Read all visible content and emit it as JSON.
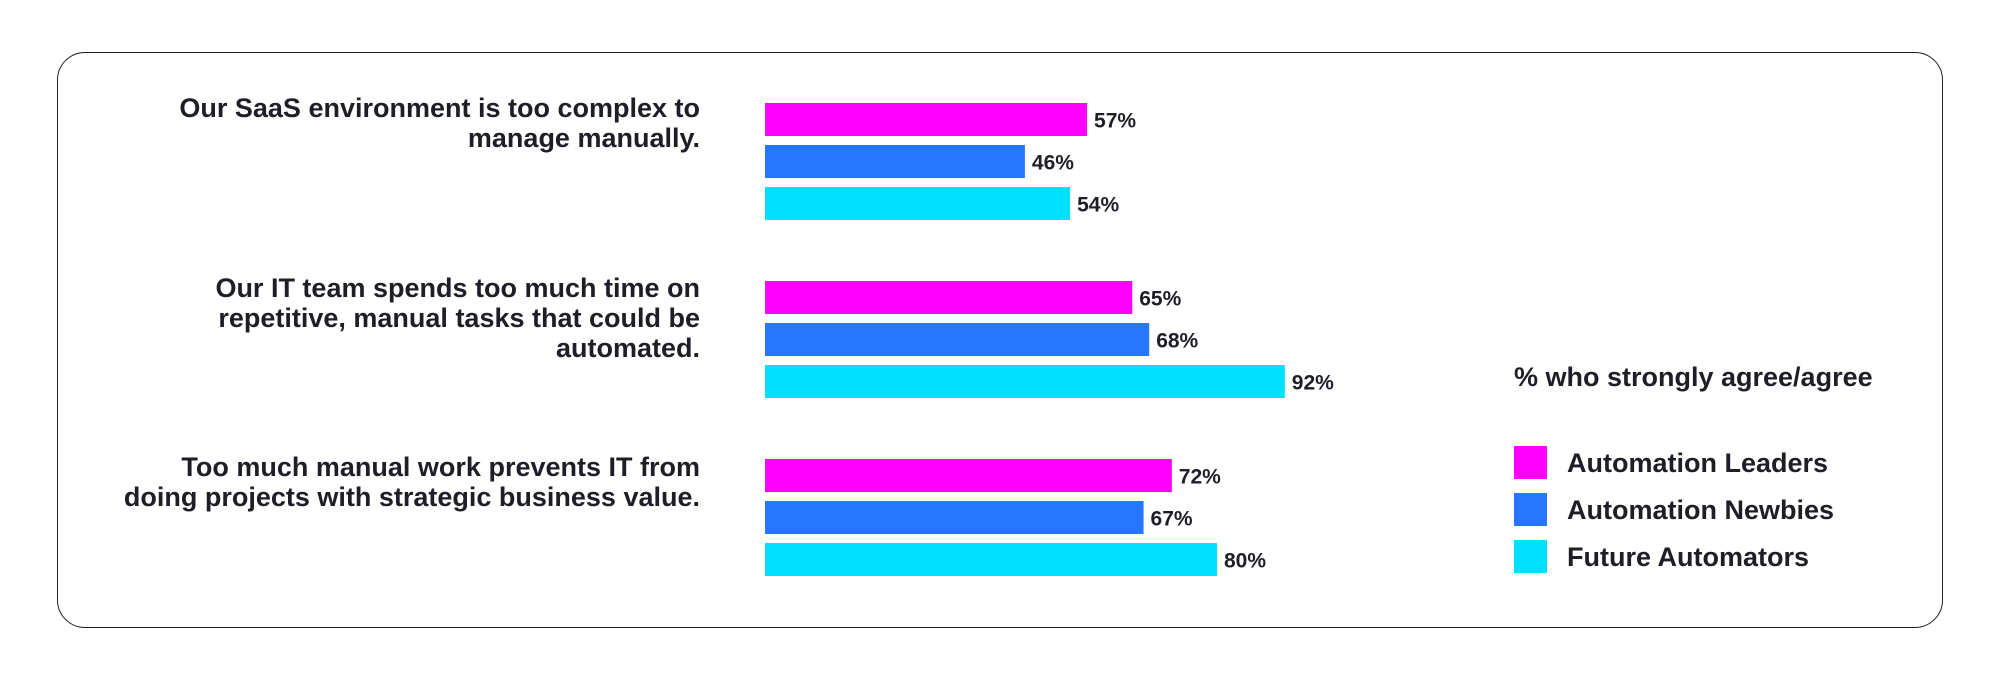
{
  "chart_data": {
    "type": "bar",
    "orientation": "horizontal",
    "categories": [
      [
        "Our SaaS environment is too complex to",
        "manage manually."
      ],
      [
        "Our IT team spends too much time on",
        "repetitive, manual tasks that could be",
        "automated."
      ],
      [
        "Too much manual work prevents IT from",
        "doing projects with strategic business value."
      ]
    ],
    "series": [
      {
        "name": "Automation Leaders",
        "color": "#ff00ff",
        "values": [
          57,
          65,
          72
        ],
        "labels": [
          "57%",
          "65%",
          "72%"
        ]
      },
      {
        "name": "Automation Newbies",
        "color": "#2676ff",
        "values": [
          46,
          68,
          67
        ],
        "labels": [
          "46%",
          "68%",
          "67%"
        ]
      },
      {
        "name": "Future Automators",
        "color": "#00e1ff",
        "values": [
          54,
          92,
          80
        ],
        "labels": [
          "54%",
          "92%",
          "80%"
        ]
      }
    ],
    "legend_title": "% who strongly agree/agree",
    "legend_position": "right",
    "xlim": [
      0,
      100
    ],
    "grid": false,
    "frame_color": "#1e1e28"
  }
}
